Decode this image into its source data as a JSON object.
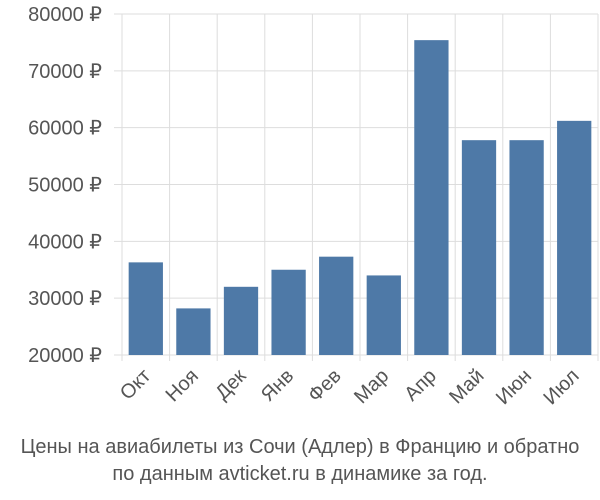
{
  "chart_data": {
    "type": "bar",
    "categories": [
      "Окт",
      "Ноя",
      "Дек",
      "Янв",
      "Фев",
      "Мар",
      "Апр",
      "Май",
      "Июн",
      "Июл"
    ],
    "values": [
      36300,
      28200,
      32000,
      35000,
      37300,
      34000,
      75400,
      57800,
      57800,
      61200
    ],
    "ylim": [
      20000,
      80000
    ],
    "yticks": [
      20000,
      30000,
      40000,
      50000,
      60000,
      70000,
      80000
    ],
    "ytick_labels": [
      "20000 ₽",
      "30000 ₽",
      "40000 ₽",
      "50000 ₽",
      "60000 ₽",
      "70000 ₽",
      "80000 ₽"
    ],
    "grid": true,
    "bar_color": "#4e79a7"
  },
  "caption": {
    "line1": "Цены на авиабилеты из Сочи (Адлер) в Францию и обратно",
    "line2": "по данным avticket.ru в динамике за год."
  }
}
